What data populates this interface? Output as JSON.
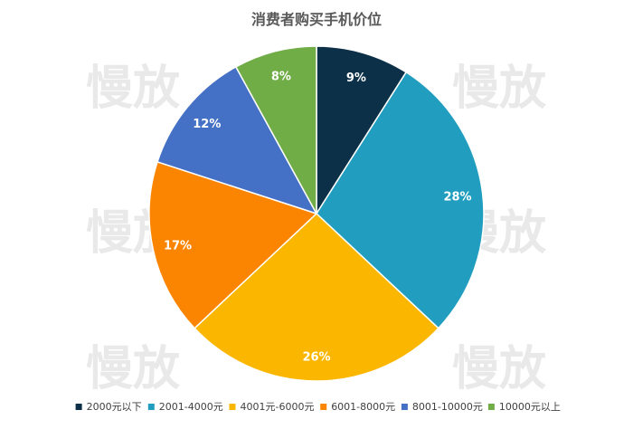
{
  "chart_data": {
    "type": "pie",
    "title": "消费者购买手机价位",
    "categories": [
      "2000元以下",
      "2001-4000元",
      "4001元-6000元",
      "6001-8000元",
      "8001-10000元",
      "10000元以上"
    ],
    "values": [
      9,
      28,
      26,
      17,
      12,
      8
    ],
    "labels": [
      "9%",
      "28%",
      "26%",
      "17%",
      "12%",
      "8%"
    ],
    "colors": [
      "#0d3049",
      "#219ebf",
      "#fbb700",
      "#fb8500",
      "#4470c6",
      "#70ad47"
    ],
    "legend_position": "bottom",
    "watermark_text": "慢放"
  }
}
